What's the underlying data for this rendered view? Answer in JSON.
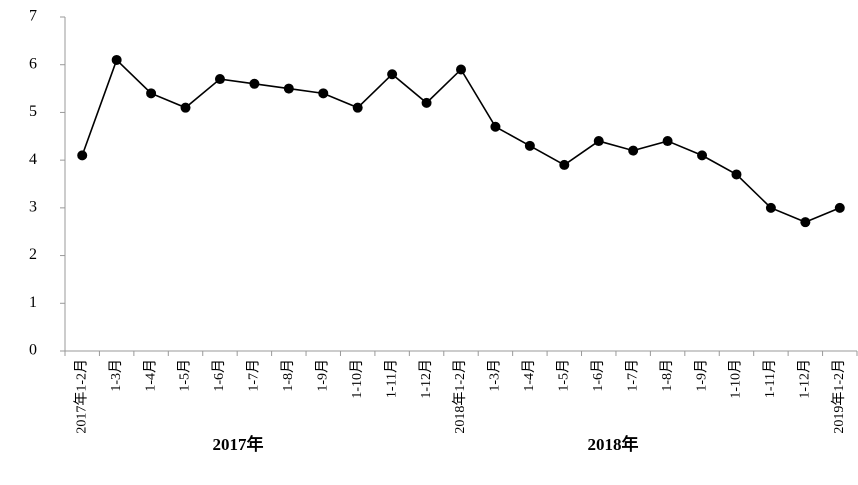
{
  "chart_data": {
    "type": "line",
    "categories": [
      "2017年1-2月",
      "1-3月",
      "1-4月",
      "1-5月",
      "1-6月",
      "1-7月",
      "1-8月",
      "1-9月",
      "1-10月",
      "1-11月",
      "1-12月",
      "2018年1-2月",
      "1-3月",
      "1-4月",
      "1-5月",
      "1-6月",
      "1-7月",
      "1-8月",
      "1-9月",
      "1-10月",
      "1-11月",
      "1-12月",
      "2019年1-2月"
    ],
    "values": [
      4.1,
      6.1,
      5.4,
      5.1,
      5.7,
      5.6,
      5.5,
      5.4,
      5.1,
      5.8,
      5.2,
      5.9,
      4.7,
      4.3,
      3.9,
      4.4,
      4.2,
      4.4,
      4.1,
      3.7,
      3.0,
      2.7,
      3.0
    ],
    "groups": [
      "2017年",
      "2018年"
    ],
    "color": "#000000",
    "ylim": [
      0,
      7
    ],
    "yticks": [
      0,
      1,
      2,
      3,
      4,
      5,
      6,
      7
    ]
  }
}
